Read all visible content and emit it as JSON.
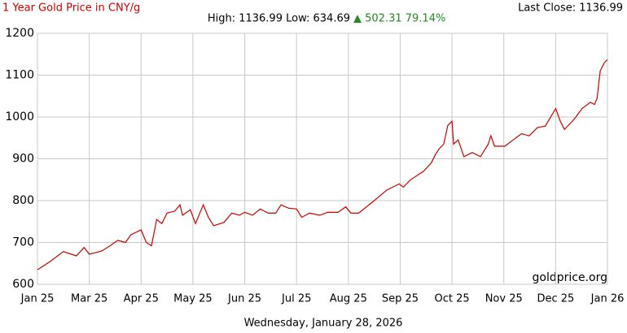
{
  "chart_data": {
    "type": "line",
    "title": "1 Year Gold Price in CNY/g",
    "last_close": "Last Close: 1136.99",
    "stats": "High: 1136.99 Low: 634.69",
    "change": "▲ 502.31 79.14%",
    "watermark": "goldprice.org",
    "date": "Wednesday, January 28, 2026",
    "xlim": [
      0,
      11
    ],
    "xticks": [
      {
        "value": 0,
        "label": "Jan 25"
      },
      {
        "value": 1,
        "label": "Mar 25"
      },
      {
        "value": 2,
        "label": "Apr 25"
      },
      {
        "value": 3,
        "label": "May 25"
      },
      {
        "value": 4,
        "label": "Jun 25"
      },
      {
        "value": 5,
        "label": "Jul 25"
      },
      {
        "value": 6,
        "label": "Aug 25"
      },
      {
        "value": 7,
        "label": "Sep 25"
      },
      {
        "value": 8,
        "label": "Oct 25"
      },
      {
        "value": 9,
        "label": "Nov 25"
      },
      {
        "value": 10,
        "label": "Dec 25"
      },
      {
        "value": 11,
        "label": "Jan 26"
      }
    ],
    "ylim": [
      600,
      1200
    ],
    "yticks": [
      600,
      700,
      800,
      900,
      1000,
      1100,
      1200
    ],
    "grid": true,
    "x": [
      0,
      0.25,
      0.5,
      0.75,
      0.9,
      1.0,
      1.1,
      1.25,
      1.4,
      1.55,
      1.7,
      1.8,
      2.0,
      2.1,
      2.2,
      2.3,
      2.4,
      2.5,
      2.65,
      2.75,
      2.8,
      2.95,
      3.05,
      3.2,
      3.3,
      3.4,
      3.6,
      3.75,
      3.9,
      4.0,
      4.15,
      4.3,
      4.45,
      4.6,
      4.7,
      4.85,
      5.0,
      5.1,
      5.25,
      5.45,
      5.6,
      5.8,
      5.95,
      6.05,
      6.2,
      6.5,
      6.74,
      6.98,
      7.06,
      7.2,
      7.45,
      7.6,
      7.68,
      7.76,
      7.84,
      7.92,
      8.0,
      8.03,
      8.12,
      8.23,
      8.39,
      8.55,
      8.7,
      8.75,
      8.82,
      9.02,
      9.18,
      9.34,
      9.49,
      9.65,
      9.8,
      10.0,
      10.09,
      10.17,
      10.36,
      10.51,
      10.67,
      10.75,
      10.8,
      10.86,
      10.94,
      11.0
    ],
    "series": [
      {
        "name": "Gold Price",
        "color": "#cc0000",
        "values": [
          634.69,
          655,
          678,
          668,
          688,
          672,
          675,
          680,
          692,
          705,
          700,
          718,
          730,
          700,
          692,
          755,
          745,
          770,
          775,
          790,
          765,
          778,
          745,
          790,
          760,
          740,
          748,
          770,
          765,
          772,
          765,
          780,
          770,
          770,
          790,
          782,
          780,
          760,
          770,
          765,
          772,
          772,
          785,
          770,
          770,
          800,
          825,
          840,
          832,
          850,
          870,
          890,
          910,
          925,
          935,
          980,
          990,
          935,
          945,
          905,
          915,
          905,
          935,
          955,
          930,
          930,
          945,
          960,
          955,
          975,
          978,
          1020,
          990,
          970,
          995,
          1020,
          1035,
          1030,
          1045,
          1110,
          1130,
          1136.99
        ]
      }
    ]
  }
}
